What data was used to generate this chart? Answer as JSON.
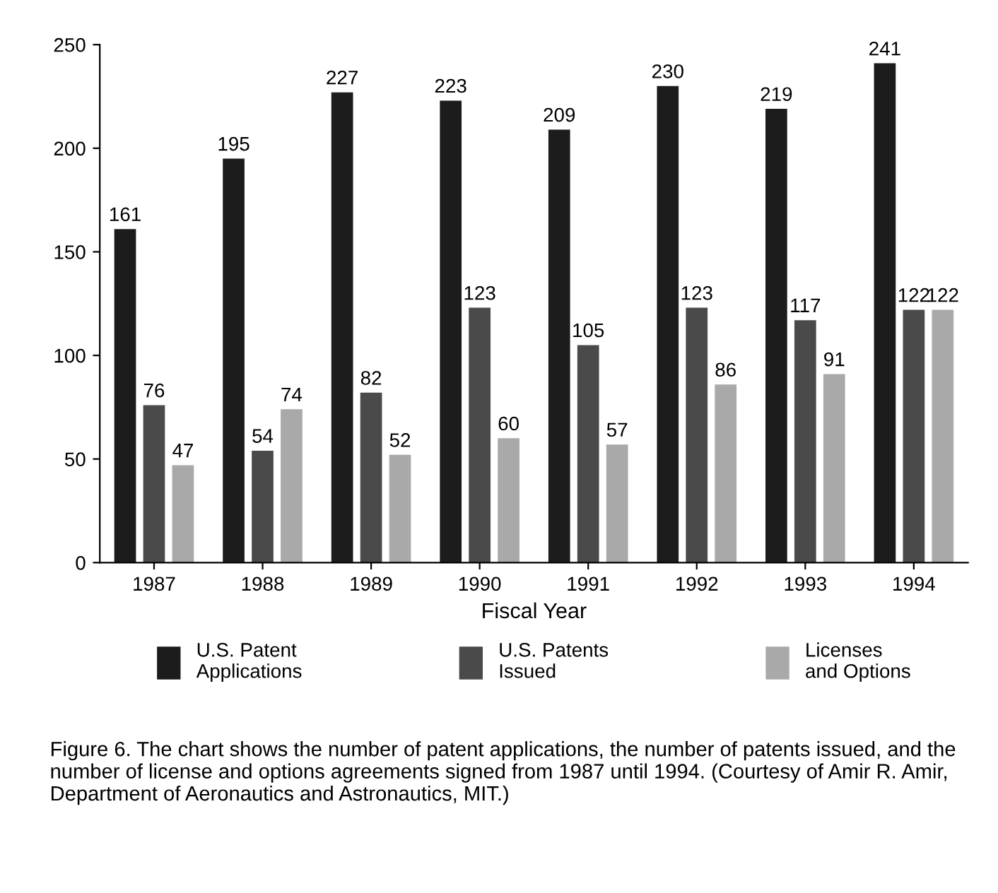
{
  "chart_data": {
    "type": "bar",
    "xlabel": "Fiscal Year",
    "categories": [
      "1987",
      "1988",
      "1989",
      "1990",
      "1991",
      "1992",
      "1993",
      "1994"
    ],
    "series": [
      {
        "name": "U.S. Patent\nApplications",
        "color": "#1c1c1c",
        "values": [
          161,
          195,
          227,
          223,
          209,
          230,
          219,
          241
        ]
      },
      {
        "name": "U.S. Patents\nIssued",
        "color": "#4a4a4a",
        "values": [
          76,
          54,
          82,
          123,
          105,
          123,
          117,
          122
        ]
      },
      {
        "name": "Licenses\nand Options",
        "color": "#a9a9a9",
        "values": [
          47,
          74,
          52,
          60,
          57,
          86,
          91,
          122
        ]
      }
    ],
    "ylim": [
      0,
      250
    ],
    "yticks": [
      0,
      50,
      100,
      150,
      200,
      250
    ],
    "grid": false,
    "legend": "bottom",
    "data_labels": true,
    "annotations": [
      "Figure 6. The chart shows the number of patent applications, the number of patents issued, and the number of license and options agreements signed from 1987 until 1994. (Courtesy of Amir R. Amir, Department of Aeronautics and Astronautics, MIT.)"
    ]
  }
}
